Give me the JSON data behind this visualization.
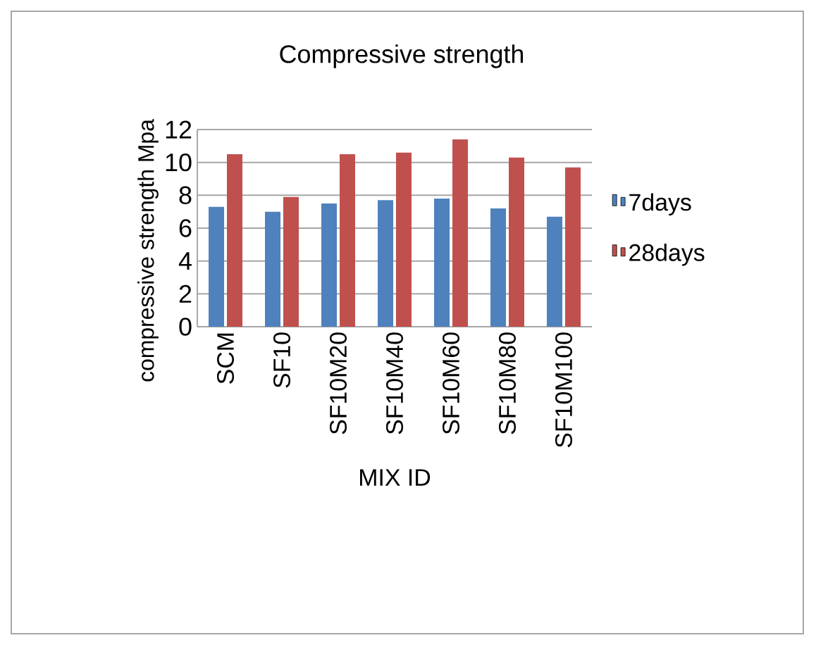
{
  "chart_data": {
    "type": "bar",
    "title": "Compressive strength",
    "xlabel": "MIX ID",
    "ylabel": "compressive strength Mpa",
    "categories": [
      "SCM",
      "SF10",
      "SF10M20",
      "SF10M40",
      "SF10M60",
      "SF10M80",
      "SF10M100"
    ],
    "series": [
      {
        "name": "7days",
        "color": "#4f81bd",
        "values": [
          7.3,
          7.0,
          7.5,
          7.7,
          7.8,
          7.2,
          6.7
        ]
      },
      {
        "name": "28days",
        "color": "#c0504d",
        "values": [
          10.5,
          7.9,
          10.5,
          10.6,
          11.4,
          10.3,
          9.7
        ]
      }
    ],
    "ylim": [
      0,
      12
    ],
    "yticks": [
      0,
      2,
      4,
      6,
      8,
      10,
      12
    ],
    "grid": "y",
    "legend": "right"
  }
}
